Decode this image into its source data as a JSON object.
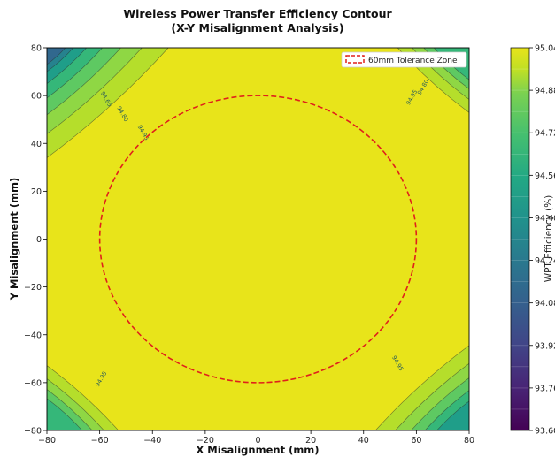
{
  "chart_data": {
    "type": "contour",
    "title": "Wireless Power Transfer Efficiency Contour",
    "subtitle": "(X-Y Misalignment Analysis)",
    "xlabel": "X Misalignment (mm)",
    "ylabel": "Y Misalignment (mm)",
    "xlim": [
      -80,
      80
    ],
    "ylim": [
      -80,
      80
    ],
    "x_ticks": [
      -80,
      -60,
      -40,
      -20,
      0,
      20,
      40,
      60,
      80
    ],
    "y_ticks": [
      -80,
      -60,
      -40,
      -20,
      0,
      20,
      40,
      60,
      80
    ],
    "colorbar": {
      "label": "WPT Efficiency (%)",
      "min": 93.6,
      "max": 95.04,
      "ticks": [
        "93.60",
        "93.76",
        "93.92",
        "94.08",
        "94.24",
        "94.40",
        "94.56",
        "94.72",
        "94.88",
        "95.04"
      ],
      "colormap": "viridis"
    },
    "plateau_efficiency": 95.04,
    "corner_contour_labels": {
      "top-left": [
        "94.65",
        "94.80",
        "94.95"
      ],
      "top-right": [
        "94.80",
        "94.95"
      ],
      "bottom-left": [
        "94.95"
      ],
      "bottom-right": [
        "94.95"
      ]
    },
    "tolerance_zone": {
      "label": "60mm Tolerance Zone",
      "radius": 60,
      "center": [
        0,
        0
      ],
      "color": "#e0201b",
      "style": "dashed"
    },
    "legend_position": "top-right",
    "grid": false
  }
}
